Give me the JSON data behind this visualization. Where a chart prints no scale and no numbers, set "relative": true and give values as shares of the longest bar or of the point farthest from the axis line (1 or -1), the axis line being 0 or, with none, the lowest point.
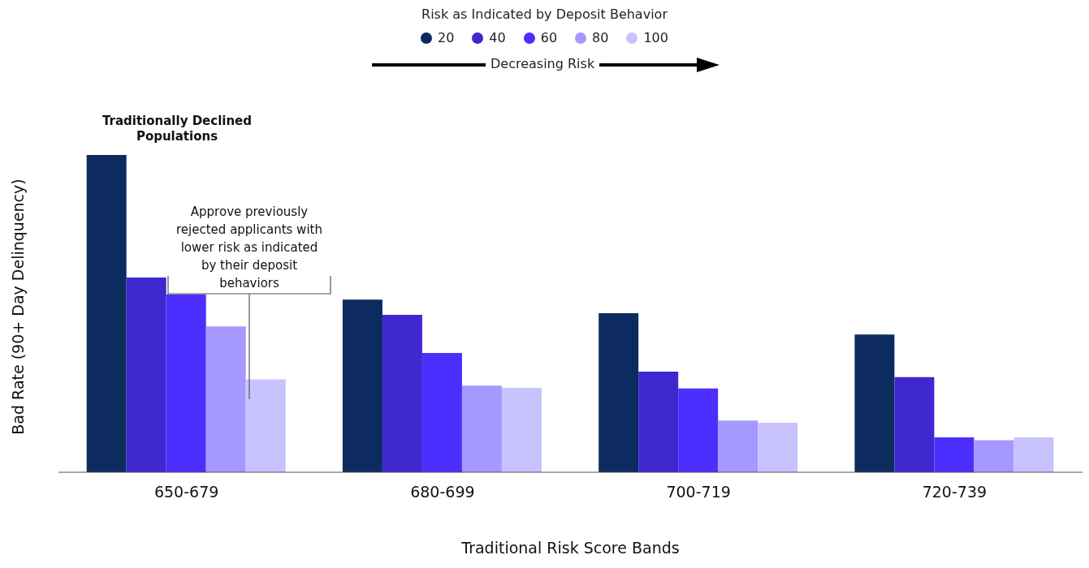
{
  "chart_data": {
    "type": "bar",
    "relative": true,
    "legend_title": "Risk as Indicated by Deposit Behavior",
    "legend": "top",
    "xlabel": "Traditional Risk Score Bands",
    "ylabel": "Bad Rate (90+ Day Delinquency)",
    "categories": [
      "650-679",
      "680-699",
      "700-719",
      "720-739"
    ],
    "series": [
      {
        "name": "20",
        "color": "#0d2b5e",
        "values": [
          1,
          0.544,
          0.501,
          0.434
        ]
      },
      {
        "name": "40",
        "color": "#3f28d0",
        "values": [
          0.614,
          0.496,
          0.317,
          0.3
        ]
      },
      {
        "name": "60",
        "color": "#4c2eff",
        "values": [
          0.561,
          0.376,
          0.264,
          0.11
        ]
      },
      {
        "name": "80",
        "color": "#a598ff",
        "values": [
          0.46,
          0.273,
          0.163,
          0.101
        ]
      },
      {
        "name": "100",
        "color": "#c8c2ff",
        "values": [
          0.293,
          0.266,
          0.156,
          0.11
        ]
      }
    ],
    "annotations": [
      "Decreasing Risk",
      "Traditionally Declined Populations",
      "Approve previously rejected applicants with lower risk as indicated by their deposit behaviors"
    ]
  }
}
